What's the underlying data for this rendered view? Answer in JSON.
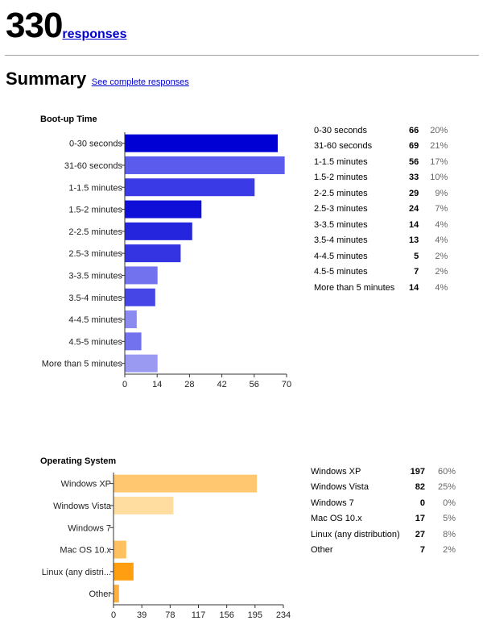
{
  "header": {
    "response_count": "330",
    "responses_label": "responses"
  },
  "summary": {
    "title": "Summary",
    "link_label": "See complete responses"
  },
  "chart_data": [
    {
      "type": "bar",
      "orientation": "horizontal",
      "title": "Boot-up Time",
      "categories": [
        "0-30 seconds",
        "31-60 seconds",
        "1-1.5 minutes",
        "1.5-2 minutes",
        "2-2.5 minutes",
        "2.5-3 minutes",
        "3-3.5 minutes",
        "3.5-4 minutes",
        "4-4.5 minutes",
        "4.5-5 minutes",
        "More than 5 minutes"
      ],
      "tick_labels": [
        "0-30 seconds",
        "31-60 seconds",
        "1-1.5 minutes",
        "1.5-2 minutes",
        "2-2.5 minutes",
        "2.5-3 minutes",
        "3-3.5 minutes",
        "3.5-4 minutes",
        "4-4.5 minutes",
        "4.5-5 minutes",
        "More than 5 minutes"
      ],
      "values": [
        66,
        69,
        56,
        33,
        29,
        24,
        14,
        13,
        5,
        7,
        14
      ],
      "percents": [
        "20%",
        "21%",
        "17%",
        "10%",
        "9%",
        "7%",
        "4%",
        "4%",
        "2%",
        "2%",
        "4%"
      ],
      "colors": [
        "#0000d4",
        "#5b5bed",
        "#3a3ae6",
        "#0f0fd8",
        "#2525dd",
        "#3434e2",
        "#7272ee",
        "#4646e6",
        "#8a8af0",
        "#7272ee",
        "#9a9af2"
      ],
      "xlim": [
        0,
        70
      ],
      "xticks": [
        0,
        14,
        28,
        42,
        56,
        70
      ],
      "xlabel": "",
      "ylabel": ""
    },
    {
      "type": "bar",
      "orientation": "horizontal",
      "title": "Operating System",
      "categories": [
        "Windows XP",
        "Windows Vista",
        "Windows 7",
        "Mac OS 10.x",
        "Linux (any distribution)",
        "Other"
      ],
      "tick_labels": [
        "Windows XP",
        "Windows Vista",
        "Windows 7",
        "Mac OS 10.x",
        "Linux (any distri...",
        "Other"
      ],
      "values": [
        197,
        82,
        0,
        17,
        27,
        7
      ],
      "percents": [
        "60%",
        "25%",
        "0%",
        "5%",
        "8%",
        "2%"
      ],
      "colors": [
        "#ffc870",
        "#ffdca0",
        "#ffe8c0",
        "#ffc060",
        "#ff9e10",
        "#ffb040"
      ],
      "xlim": [
        0,
        234
      ],
      "xticks": [
        0,
        39,
        78,
        117,
        156,
        195,
        234
      ],
      "xlabel": "",
      "ylabel": ""
    }
  ]
}
